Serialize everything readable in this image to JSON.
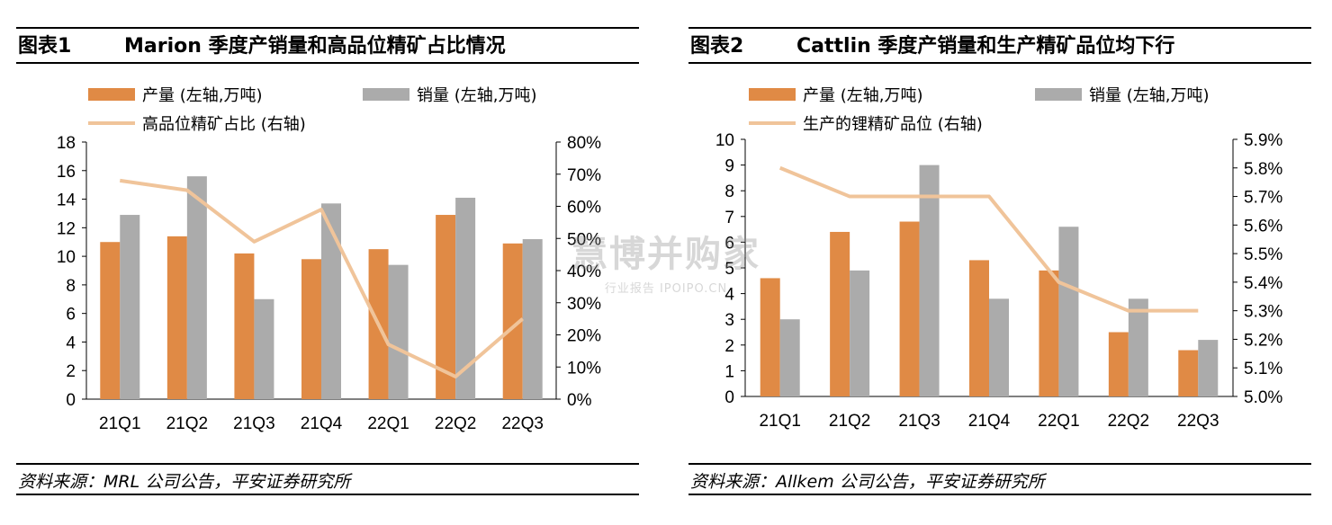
{
  "colors": {
    "production": "#E08A45",
    "sales": "#ABABAB",
    "line": "#F0C49A"
  },
  "figures": [
    {
      "label": "图表1",
      "title": "Marion 季度产销量和高品位精矿占比情况",
      "source": "资料来源：MRL 公司公告，平安证券研究所",
      "chart_data": {
        "type": "bar",
        "categories": [
          "21Q1",
          "21Q2",
          "21Q3",
          "21Q4",
          "22Q1",
          "22Q2",
          "22Q3"
        ],
        "series": [
          {
            "name": "产量 (左轴,万吨)",
            "kind": "bar",
            "axis": "left",
            "values": [
              11.0,
              11.4,
              10.2,
              9.8,
              10.5,
              12.9,
              10.9
            ]
          },
          {
            "name": "销量 (左轴,万吨)",
            "kind": "bar",
            "axis": "left",
            "values": [
              12.9,
              15.6,
              7.0,
              13.7,
              9.4,
              14.1,
              11.2
            ]
          },
          {
            "name": "高品位精矿占比 (右轴)",
            "kind": "line",
            "axis": "right",
            "values": [
              68,
              65,
              49,
              59,
              17,
              7,
              25
            ]
          }
        ],
        "y_left": {
          "min": 0,
          "max": 18,
          "step": 2,
          "ticks": [
            "0",
            "2",
            "4",
            "6",
            "8",
            "10",
            "12",
            "14",
            "16",
            "18"
          ]
        },
        "y_right": {
          "min": 0,
          "max": 80,
          "step": 10,
          "ticks": [
            "0%",
            "10%",
            "20%",
            "30%",
            "40%",
            "50%",
            "60%",
            "70%",
            "80%"
          ]
        },
        "legend": "top",
        "grid": false
      }
    },
    {
      "label": "图表2",
      "title": "Cattlin 季度产销量和生产精矿品位均下行",
      "source": "资料来源：Allkem 公司公告，平安证券研究所",
      "chart_data": {
        "type": "bar",
        "categories": [
          "21Q1",
          "21Q2",
          "21Q3",
          "21Q4",
          "22Q1",
          "22Q2",
          "22Q3"
        ],
        "series": [
          {
            "name": "产量 (左轴,万吨)",
            "kind": "bar",
            "axis": "left",
            "values": [
              4.6,
              6.4,
              6.8,
              5.3,
              4.9,
              2.5,
              1.8
            ]
          },
          {
            "name": "销量 (左轴,万吨)",
            "kind": "bar",
            "axis": "left",
            "values": [
              3.0,
              4.9,
              9.0,
              3.8,
              6.6,
              3.8,
              2.2
            ]
          },
          {
            "name": "生产的锂精矿品位 (右轴)",
            "kind": "line",
            "axis": "right",
            "values": [
              5.8,
              5.7,
              5.7,
              5.7,
              5.4,
              5.3,
              5.3
            ]
          }
        ],
        "y_left": {
          "min": 0,
          "max": 10,
          "step": 1,
          "ticks": [
            "0",
            "1",
            "2",
            "3",
            "4",
            "5",
            "6",
            "7",
            "8",
            "9",
            "10"
          ]
        },
        "y_right": {
          "min": 5.0,
          "max": 5.9,
          "step": 0.1,
          "ticks": [
            "5.0%",
            "5.1%",
            "5.2%",
            "5.3%",
            "5.4%",
            "5.5%",
            "5.6%",
            "5.7%",
            "5.8%",
            "5.9%"
          ]
        },
        "legend": "top",
        "grid": false
      }
    }
  ],
  "watermark": {
    "main": "慧博并购家",
    "sub": "行业报告 IPOIPO.CN"
  }
}
